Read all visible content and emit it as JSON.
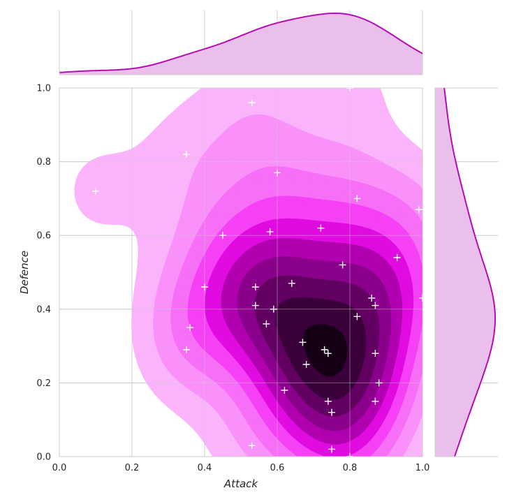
{
  "chart_data": {
    "type": "scatter",
    "subtype": "jointplot-kde",
    "xlabel": "Attack",
    "ylabel": "Defence",
    "xlim": [
      0.0,
      1.0
    ],
    "ylim": [
      0.0,
      1.0
    ],
    "x_ticks": [
      "0.0",
      "0.2",
      "0.4",
      "0.6",
      "0.8",
      "1.0"
    ],
    "y_ticks": [
      "0.0",
      "0.2",
      "0.4",
      "0.6",
      "0.8",
      "1.0"
    ],
    "grid": true,
    "marker": "+",
    "colors": {
      "accent": "#b30db3",
      "marginal_fill": "#ebbfeb",
      "marker": "#ffffff",
      "grid": "#cccccc",
      "kde_levels": [
        "#ffffff",
        "#fbb4fb",
        "#fa90fa",
        "#f76ef7",
        "#f540f5",
        "#e10ae1",
        "#b000b0",
        "#8a008a",
        "#620062",
        "#3a003a",
        "#160016"
      ]
    },
    "points": [
      [
        0.1,
        0.72
      ],
      [
        0.35,
        0.82
      ],
      [
        0.53,
        0.96
      ],
      [
        0.8,
        1.0
      ],
      [
        0.6,
        0.77
      ],
      [
        0.45,
        0.6
      ],
      [
        0.58,
        0.61
      ],
      [
        0.72,
        0.62
      ],
      [
        0.82,
        0.7
      ],
      [
        0.99,
        0.67
      ],
      [
        0.93,
        0.54
      ],
      [
        0.78,
        0.52
      ],
      [
        0.4,
        0.46
      ],
      [
        0.54,
        0.46
      ],
      [
        0.64,
        0.47
      ],
      [
        0.54,
        0.41
      ],
      [
        0.59,
        0.4
      ],
      [
        0.57,
        0.36
      ],
      [
        0.86,
        0.43
      ],
      [
        0.87,
        0.41
      ],
      [
        0.82,
        0.38
      ],
      [
        1.0,
        0.43
      ],
      [
        0.36,
        0.35
      ],
      [
        0.35,
        0.29
      ],
      [
        0.67,
        0.31
      ],
      [
        0.73,
        0.29
      ],
      [
        0.74,
        0.28
      ],
      [
        0.68,
        0.25
      ],
      [
        0.87,
        0.28
      ],
      [
        0.88,
        0.2
      ],
      [
        0.62,
        0.18
      ],
      [
        0.74,
        0.15
      ],
      [
        0.75,
        0.12
      ],
      [
        0.87,
        0.15
      ],
      [
        0.53,
        0.03
      ],
      [
        0.75,
        0.02
      ],
      [
        0.8,
        0.0
      ]
    ]
  }
}
